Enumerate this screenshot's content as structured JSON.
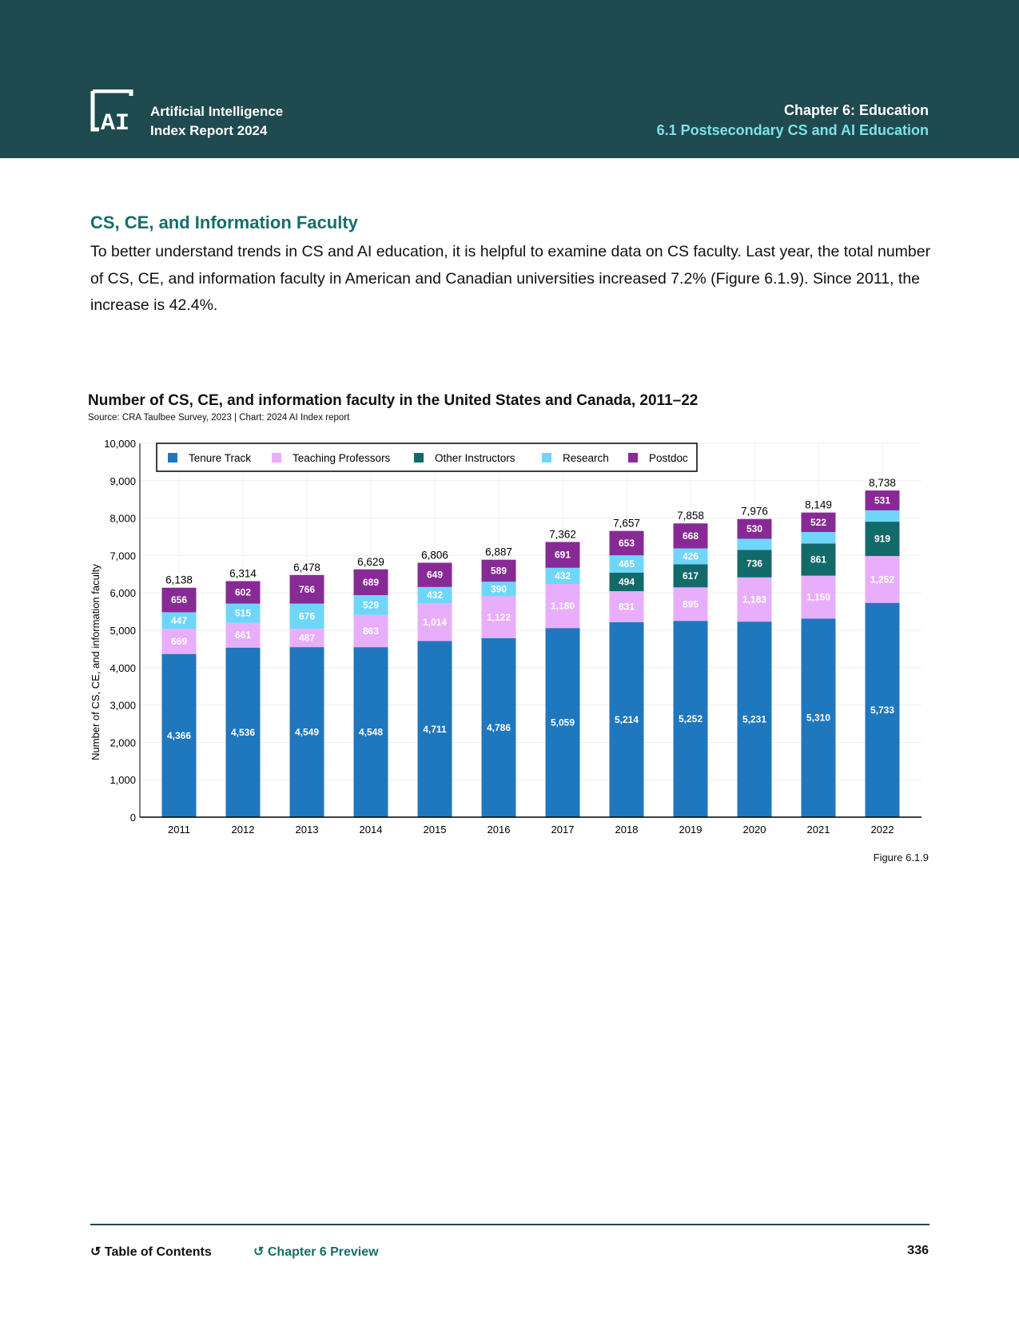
{
  "header": {
    "brand_line1": "Artificial Intelligence",
    "brand_line2": "Index Report 2024",
    "logo_text": "AI",
    "chapter": "Chapter 6: Education",
    "section": "6.1 Postsecondary CS and AI Education"
  },
  "section": {
    "title": "CS, CE, and Information Faculty",
    "body": "To better understand trends in CS and AI education, it is helpful to examine data on CS faculty. Last year, the total number of CS, CE, and information faculty in American and Canadian universities increased 7.2% (Figure 6.1.9). Since 2011, the increase is 42.4%."
  },
  "figure_label": "Figure 6.1.9",
  "footer": {
    "toc": "Table of Contents",
    "preview": "Chapter 6 Preview",
    "page": "336"
  },
  "chart_data": {
    "type": "bar",
    "stacked": true,
    "title": "Number of CS, CE, and information faculty in the United States and Canada, 2011–22",
    "subtitle": "Source: CRA Taulbee Survey, 2023 | Chart: 2024 AI Index report",
    "ylabel": "Number of CS, CE, and information faculty",
    "xlabel": "",
    "ylim": [
      0,
      10000
    ],
    "yticks": [
      "0",
      "1,000",
      "2,000",
      "3,000",
      "4,000",
      "5,000",
      "6,000",
      "7,000",
      "8,000",
      "9,000",
      "10,000"
    ],
    "grid": true,
    "legend_position": "top",
    "categories": [
      "2011",
      "2012",
      "2013",
      "2014",
      "2015",
      "2016",
      "2017",
      "2018",
      "2019",
      "2020",
      "2021",
      "2022"
    ],
    "totals": [
      "6,138",
      "6,314",
      "6,478",
      "6,629",
      "6,806",
      "6,887",
      "7,362",
      "7,657",
      "7,858",
      "7,976",
      "8,149",
      "8,738"
    ],
    "series": [
      {
        "name": "Tenure Track",
        "color": "#1f77bd",
        "values": [
          4366,
          4536,
          4549,
          4548,
          4711,
          4786,
          5059,
          5214,
          5252,
          5231,
          5310,
          5733
        ],
        "labels": [
          "4,366",
          "4,536",
          "4,549",
          "4,548",
          "4,711",
          "4,786",
          "5,059",
          "5,214",
          "5,252",
          "5,231",
          "5,310",
          "5,733"
        ]
      },
      {
        "name": "Teaching Professors",
        "color": "#e9aefb",
        "values": [
          669,
          661,
          487,
          863,
          1014,
          1122,
          1180,
          831,
          895,
          1183,
          1150,
          1252
        ],
        "labels": [
          "669",
          "661",
          "487",
          "863",
          "1,014",
          "1,122",
          "1,180",
          "831",
          "895",
          "1,183",
          "1,150",
          "1,252"
        ]
      },
      {
        "name": "Other Instructors",
        "color": "#136a6a",
        "values": [
          0,
          0,
          0,
          0,
          0,
          0,
          0,
          494,
          617,
          736,
          861,
          919
        ],
        "labels": [
          "",
          "",
          "",
          "",
          "",
          "",
          "",
          "494",
          "617",
          "736",
          "861",
          "919"
        ]
      },
      {
        "name": "Research",
        "color": "#6fd6fa",
        "values": [
          447,
          515,
          676,
          529,
          432,
          390,
          432,
          465,
          426,
          296,
          306,
          303
        ],
        "labels": [
          "447",
          "515",
          "676",
          "529",
          "432",
          "390",
          "432",
          "465",
          "426",
          "",
          "",
          ""
        ]
      },
      {
        "name": "Postdoc",
        "color": "#872a96",
        "values": [
          656,
          602,
          766,
          689,
          649,
          589,
          691,
          653,
          668,
          530,
          522,
          531
        ],
        "labels": [
          "656",
          "602",
          "766",
          "689",
          "649",
          "589",
          "691",
          "653",
          "668",
          "530",
          "522",
          "531"
        ]
      }
    ]
  }
}
